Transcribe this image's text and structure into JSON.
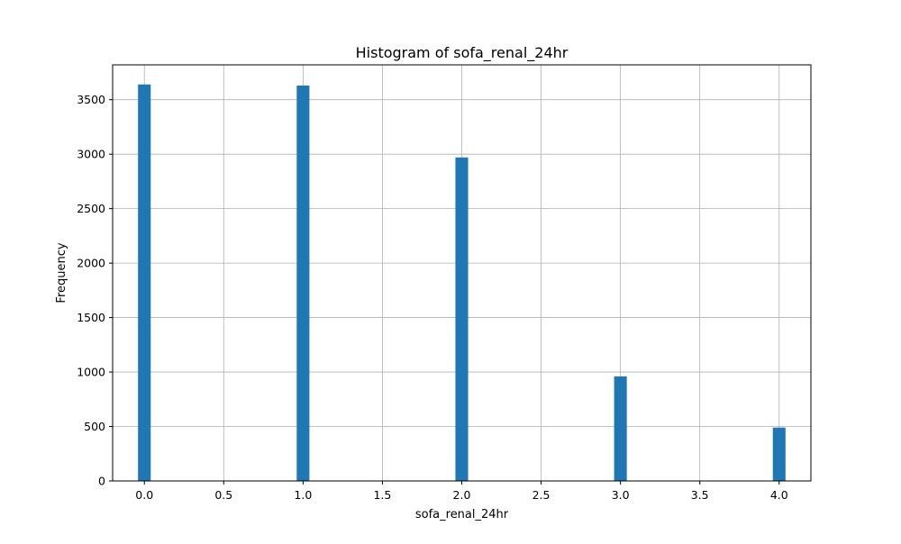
{
  "chart_data": {
    "type": "bar",
    "title": "Histogram of sofa_renal_24hr",
    "xlabel": "sofa_renal_24hr",
    "ylabel": "Frequency",
    "xlim": [
      -0.2,
      4.2
    ],
    "ylim": [
      0,
      3820
    ],
    "xticks": [
      0.0,
      0.5,
      1.0,
      1.5,
      2.0,
      2.5,
      3.0,
      3.5,
      4.0
    ],
    "xtick_labels": [
      "0.0",
      "0.5",
      "1.0",
      "1.5",
      "2.0",
      "2.5",
      "3.0",
      "3.5",
      "4.0"
    ],
    "yticks": [
      0,
      500,
      1000,
      1500,
      2000,
      2500,
      3000,
      3500
    ],
    "ytick_labels": [
      "0",
      "500",
      "1000",
      "1500",
      "2000",
      "2500",
      "3000",
      "3500"
    ],
    "grid": true,
    "bar_color": "#1f77b4",
    "bin_width": 0.08,
    "bins": [
      {
        "x": 0,
        "value": 3640
      },
      {
        "x": 1,
        "value": 3630
      },
      {
        "x": 2,
        "value": 2970
      },
      {
        "x": 3,
        "value": 960
      },
      {
        "x": 4,
        "value": 490
      }
    ]
  }
}
